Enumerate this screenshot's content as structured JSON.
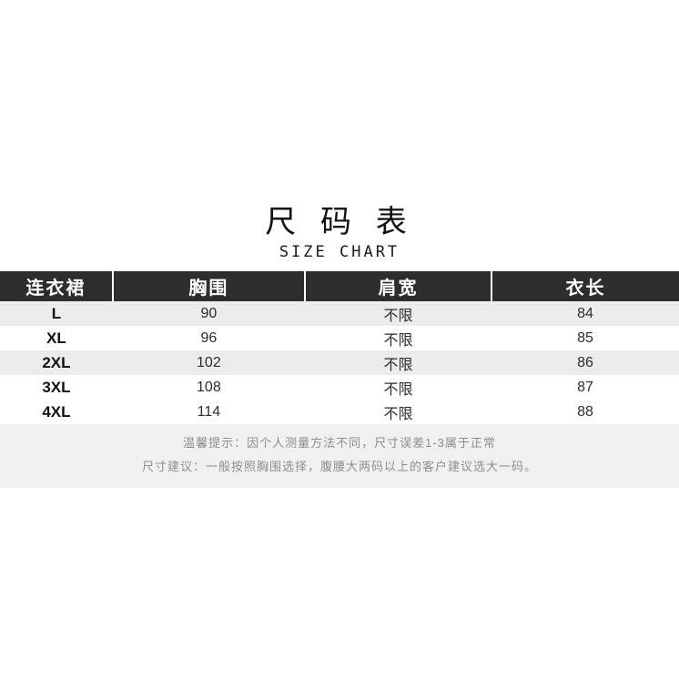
{
  "title": {
    "zh": "尺 码 表",
    "en": "SIZE CHART"
  },
  "table": {
    "headers": [
      "连衣裙",
      "胸围",
      "肩宽",
      "衣长"
    ],
    "rows": [
      {
        "size": "L",
        "bust": "90",
        "shoulder": "不限",
        "length": "84"
      },
      {
        "size": "XL",
        "bust": "96",
        "shoulder": "不限",
        "length": "85"
      },
      {
        "size": "2XL",
        "bust": "102",
        "shoulder": "不限",
        "length": "86"
      },
      {
        "size": "3XL",
        "bust": "108",
        "shoulder": "不限",
        "length": "87"
      },
      {
        "size": "4XL",
        "bust": "114",
        "shoulder": "不限",
        "length": "88"
      }
    ]
  },
  "notes": [
    "温馨提示：因个人测量方法不同，尺寸误差1-3属于正常",
    "尺寸建议：一般按照胸围选择，腹腰大两码以上的客户建议选大一码。"
  ],
  "colors": {
    "header_bg": "#2d2d2d",
    "header_text": "#ffffff",
    "row_alt_bg": "#ececec",
    "row_bg": "#ffffff",
    "notes_bg": "#f0f0f0",
    "notes_text": "#8e8e8e",
    "title_text": "#111111"
  },
  "chart_data": {
    "type": "table",
    "title": "尺码表 SIZE CHART",
    "columns": [
      "连衣裙",
      "胸围",
      "肩宽",
      "衣长"
    ],
    "rows": [
      [
        "L",
        90,
        "不限",
        84
      ],
      [
        "XL",
        96,
        "不限",
        85
      ],
      [
        "2XL",
        102,
        "不限",
        86
      ],
      [
        "3XL",
        108,
        "不限",
        87
      ],
      [
        "4XL",
        114,
        "不限",
        88
      ]
    ]
  }
}
